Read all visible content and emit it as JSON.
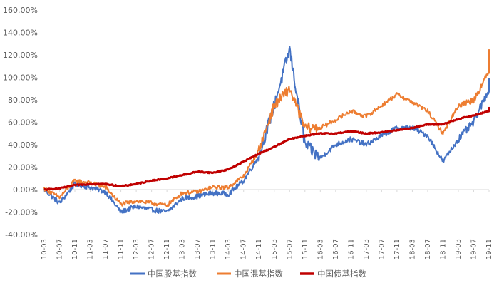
{
  "chart_data": {
    "type": "line",
    "title": "",
    "xlabel": "",
    "ylabel": "",
    "ylim": [
      -40,
      160
    ],
    "y_tick_labels": [
      "160.00%",
      "140.00%",
      "120.00%",
      "100.00%",
      "80.00%",
      "60.00%",
      "40.00%",
      "20.00%",
      "0.00%",
      "-20.00%",
      "-40.00%"
    ],
    "y_ticks": [
      160,
      140,
      120,
      100,
      80,
      60,
      40,
      20,
      0,
      -20,
      -40
    ],
    "grid": false,
    "legend_position": "bottom",
    "x": [
      "10-03",
      "10-07",
      "10-11",
      "11-03",
      "11-07",
      "11-11",
      "12-03",
      "12-07",
      "12-11",
      "13-03",
      "13-07",
      "13-11",
      "14-03",
      "14-07",
      "14-11",
      "15-03",
      "15-07",
      "15-11",
      "16-03",
      "16-07",
      "16-11",
      "17-03",
      "17-07",
      "17-11",
      "18-03",
      "18-07",
      "18-11",
      "19-03",
      "19-07",
      "19-11"
    ],
    "series": [
      {
        "name": "中国股基指数",
        "color": "#4472C4",
        "values": [
          0,
          -12,
          5,
          2,
          -2,
          -20,
          -15,
          -18,
          -20,
          -8,
          -6,
          -3,
          -4,
          8,
          30,
          75,
          125,
          40,
          28,
          40,
          45,
          40,
          48,
          55,
          55,
          48,
          25,
          45,
          60,
          90
        ],
        "end_value": 98
      },
      {
        "name": "中国混基指数",
        "color": "#ED7D31",
        "values": [
          1,
          -7,
          8,
          6,
          2,
          -13,
          -10,
          -12,
          -14,
          -3,
          -2,
          2,
          2,
          12,
          35,
          75,
          90,
          55,
          55,
          62,
          70,
          65,
          75,
          85,
          78,
          70,
          50,
          75,
          80,
          105
        ],
        "end_value": 125
      },
      {
        "name": "中国债基指数",
        "color": "#C00000",
        "values": [
          0,
          1,
          4,
          5,
          5,
          3,
          5,
          8,
          10,
          13,
          16,
          15,
          18,
          25,
          32,
          38,
          45,
          48,
          50,
          50,
          52,
          50,
          51,
          53,
          55,
          58,
          58,
          63,
          66,
          70
        ],
        "end_value": 73
      }
    ]
  }
}
